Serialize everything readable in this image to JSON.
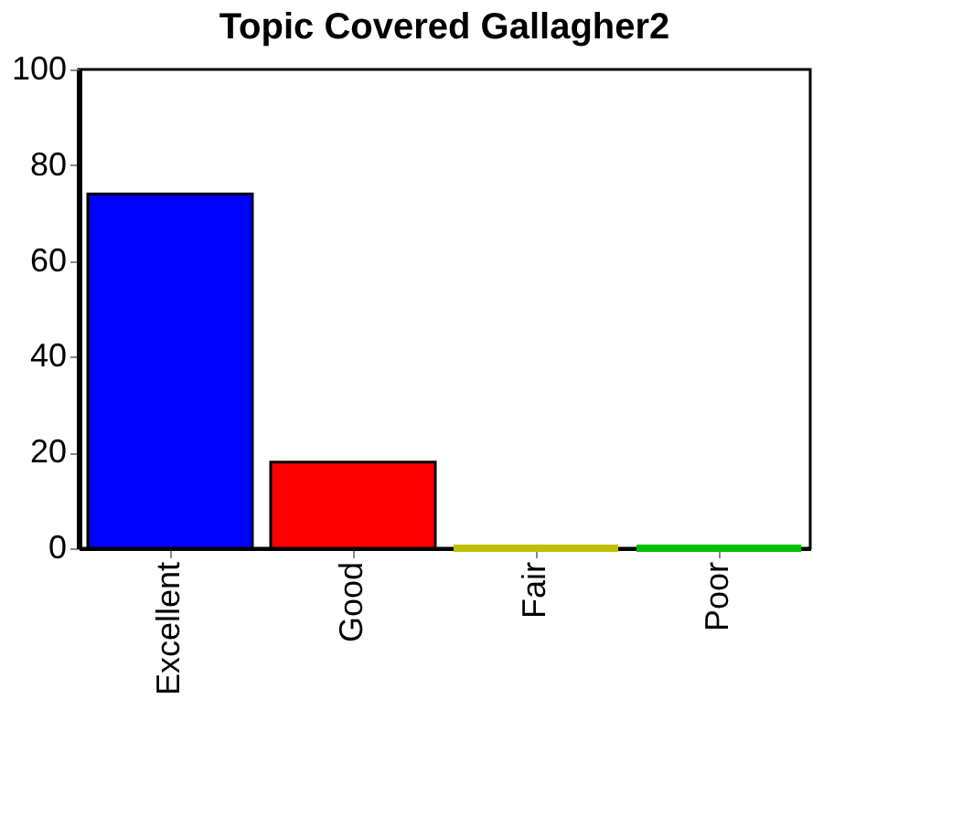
{
  "chart_data": {
    "type": "bar",
    "title": "Topic Covered Gallagher2",
    "categories": [
      "Excellent",
      "Good",
      "Fair",
      "Poor"
    ],
    "values": [
      74,
      18,
      0,
      0
    ],
    "colors": [
      "#0000ff",
      "#ff0000",
      "#c0c000",
      "#00c000"
    ],
    "ylim": [
      0,
      100
    ],
    "yticks": [
      0,
      20,
      40,
      60,
      80,
      100
    ],
    "grid": false
  }
}
